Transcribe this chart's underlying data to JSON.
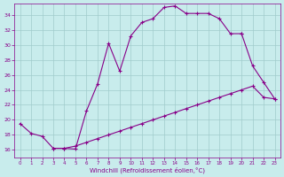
{
  "bg_color": "#c8ecec",
  "grid_color": "#a0cccc",
  "line_color": "#880088",
  "xlabel": "Windchill (Refroidissement éolien,°C)",
  "xlim_min": -0.5,
  "xlim_max": 23.5,
  "ylim_min": 15.0,
  "ylim_max": 35.5,
  "xticks": [
    0,
    1,
    2,
    3,
    4,
    5,
    6,
    7,
    8,
    9,
    10,
    11,
    12,
    13,
    14,
    15,
    16,
    17,
    18,
    19,
    20,
    21,
    22,
    23
  ],
  "yticks": [
    16,
    18,
    20,
    22,
    24,
    26,
    28,
    30,
    32,
    34
  ],
  "line1_x": [
    0,
    1,
    2,
    3,
    4,
    5,
    6,
    7,
    8,
    9,
    10,
    11,
    12,
    13,
    14,
    15,
    16,
    17,
    18,
    19,
    20
  ],
  "line1_y": [
    19.5,
    18.2,
    17.8,
    16.2,
    16.2,
    16.1,
    21.2,
    24.8,
    30.2,
    26.5,
    31.2,
    33.0,
    33.5,
    35.0,
    35.2,
    34.2,
    34.2,
    34.2,
    33.5,
    31.5,
    31.5
  ],
  "line2_x": [
    3,
    4,
    5,
    6,
    7,
    8,
    9,
    10,
    11,
    12,
    13,
    14,
    15,
    16,
    17,
    18,
    19,
    20,
    21,
    22,
    23
  ],
  "line2_y": [
    16.2,
    16.2,
    16.5,
    17.0,
    17.5,
    18.0,
    18.5,
    19.0,
    19.5,
    20.0,
    20.5,
    21.0,
    21.5,
    22.0,
    22.5,
    23.0,
    23.5,
    24.0,
    24.5,
    23.0,
    22.8
  ],
  "line3_x": [
    20,
    21,
    22,
    23
  ],
  "line3_y": [
    31.5,
    27.2,
    25.0,
    22.8
  ],
  "linewidth": 0.8,
  "markersize": 2.5,
  "tick_fontsize": 4.5,
  "xlabel_fontsize": 5.0
}
